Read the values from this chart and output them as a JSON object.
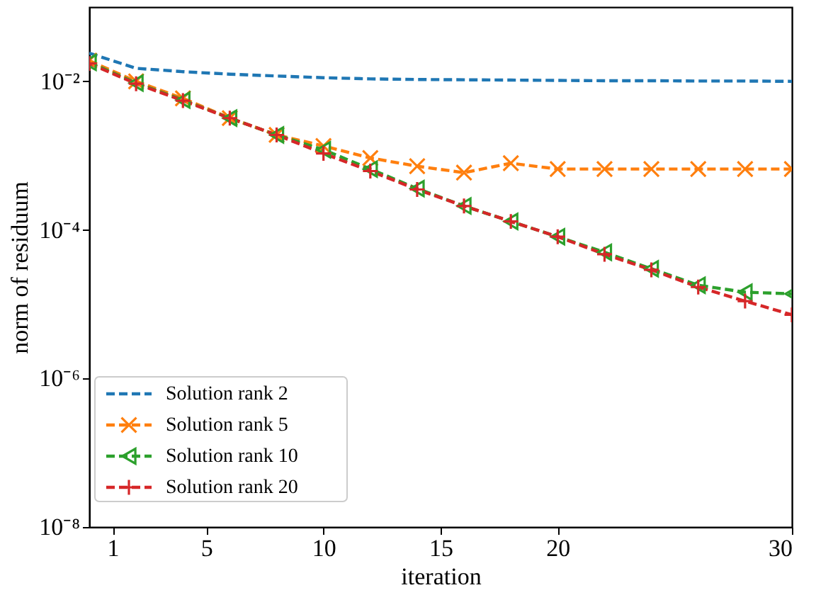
{
  "chart_data": {
    "type": "line",
    "xlabel": "iteration",
    "ylabel": "norm of residuum",
    "x": [
      0,
      2,
      4,
      6,
      8,
      10,
      12,
      14,
      16,
      18,
      20,
      22,
      24,
      26,
      28,
      30
    ],
    "series": [
      {
        "name": "Solution rank 2",
        "color": "#1f77b4",
        "marker": "none",
        "values": [
          0.024,
          0.015,
          0.0135,
          0.0125,
          0.0118,
          0.0112,
          0.0108,
          0.0106,
          0.0105,
          0.0104,
          0.0103,
          0.0102,
          0.0102,
          0.0101,
          0.0101,
          0.01
        ]
      },
      {
        "name": "Solution rank 5",
        "color": "#ff7f0e",
        "marker": "x",
        "values": [
          0.019,
          0.01,
          0.0059,
          0.0032,
          0.0019,
          0.00135,
          0.00093,
          0.00072,
          0.00059,
          0.00079,
          0.00066,
          0.00066,
          0.00066,
          0.00066,
          0.00066,
          0.00066
        ]
      },
      {
        "name": "Solution rank 10",
        "color": "#2ca02c",
        "marker": "triangle",
        "values": [
          0.018,
          0.0095,
          0.0056,
          0.0032,
          0.0019,
          0.0012,
          0.00066,
          0.00036,
          0.00021,
          0.00013,
          8.1e-05,
          5e-05,
          3e-05,
          1.8e-05,
          1.45e-05,
          1.38e-05
        ]
      },
      {
        "name": "Solution rank 20",
        "color": "#d62728",
        "marker": "cross",
        "values": [
          0.0174,
          0.0093,
          0.0055,
          0.0032,
          0.0019,
          0.00107,
          0.00062,
          0.00035,
          0.00021,
          0.00013,
          8.1e-05,
          4.7e-05,
          2.9e-05,
          1.7e-05,
          1.1e-05,
          7.2e-06
        ]
      }
    ],
    "xlim": [
      0,
      30
    ],
    "xticks": [
      1,
      5,
      10,
      15,
      20,
      30
    ],
    "ylim": [
      1e-08,
      0.1
    ],
    "log": true,
    "yticks": [
      {
        "value": 1e-08,
        "label": "10⁻⁸"
      },
      {
        "value": 1e-06,
        "label": "10⁻⁶"
      },
      {
        "value": 0.0001,
        "label": "10⁻⁴"
      },
      {
        "value": 0.01,
        "label": "10⁻²"
      }
    ],
    "line_style": "dashed",
    "legend": "bottom left",
    "grid": false
  }
}
